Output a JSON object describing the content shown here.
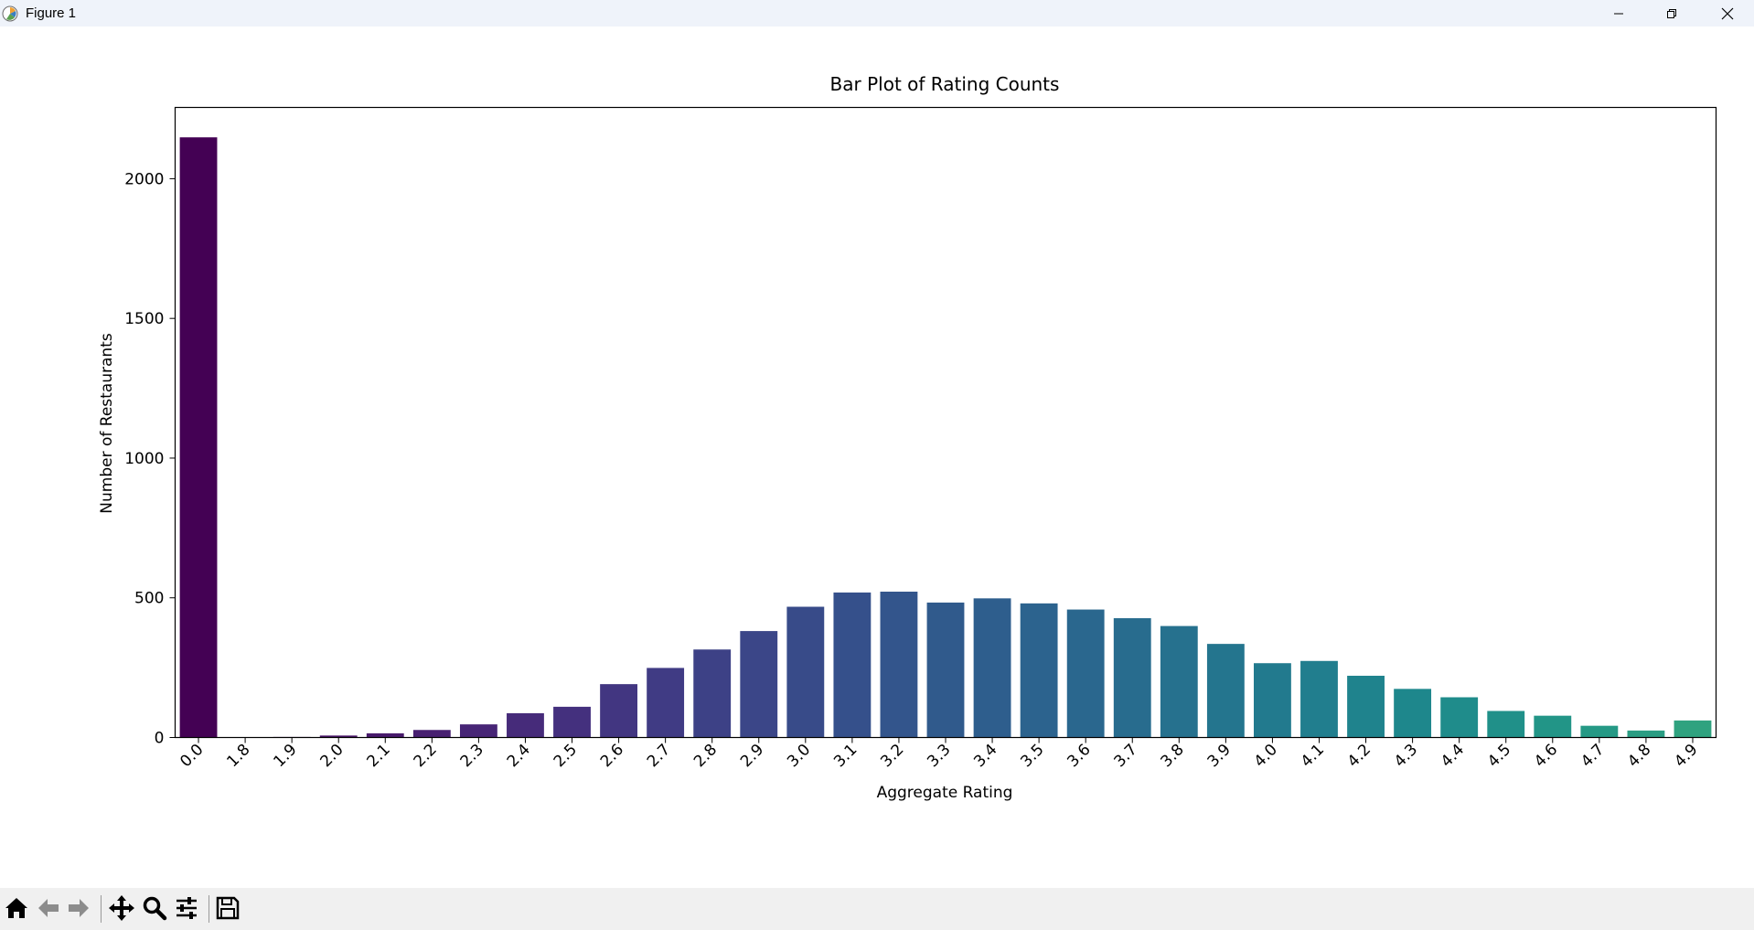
{
  "window": {
    "title": "Figure 1"
  },
  "toolbar": {
    "items": [
      "home-icon",
      "back-arrow-icon",
      "forward-arrow-icon",
      "pan-icon",
      "zoom-icon",
      "configure-subplots-icon",
      "save-icon"
    ]
  },
  "chart_data": {
    "type": "bar",
    "title": "Bar Plot of Rating Counts",
    "xlabel": "Aggregate Rating",
    "ylabel": "Number of Restaurants",
    "categories": [
      "0.0",
      "1.8",
      "1.9",
      "2.0",
      "2.1",
      "2.2",
      "2.3",
      "2.4",
      "2.5",
      "2.6",
      "2.7",
      "2.8",
      "2.9",
      "3.0",
      "3.1",
      "3.2",
      "3.3",
      "3.4",
      "3.5",
      "3.6",
      "3.7",
      "3.8",
      "3.9",
      "4.0",
      "4.1",
      "4.2",
      "4.3",
      "4.4",
      "4.5",
      "4.6",
      "4.7",
      "4.8",
      "4.9"
    ],
    "values": [
      2148,
      1,
      2,
      7,
      15,
      27,
      47,
      87,
      110,
      191,
      249,
      315,
      381,
      468,
      519,
      522,
      483,
      498,
      480,
      458,
      427,
      399,
      335,
      266,
      274,
      221,
      174,
      144,
      95,
      78,
      42,
      25,
      61
    ],
    "ylim": [
      0,
      2255
    ],
    "yticks": [
      0,
      500,
      1000,
      1500,
      2000
    ],
    "colormap": "viridis",
    "colors": [
      "#440154",
      "#46075a",
      "#470e61",
      "#481467",
      "#481a6c",
      "#482071",
      "#472576",
      "#462b7a",
      "#44307e",
      "#423681",
      "#403b84",
      "#3d4186",
      "#3b4688",
      "#384b89",
      "#35508b",
      "#33558c",
      "#305a8c",
      "#2e5e8d",
      "#2c638e",
      "#2a678e",
      "#286c8e",
      "#26718e",
      "#24758e",
      "#227a8e",
      "#217e8e",
      "#1f838d",
      "#1e878c",
      "#1f8c8b",
      "#209089",
      "#229587",
      "#259985",
      "#2a9d83",
      "#2fa27f"
    ],
    "grid": false,
    "legend": "none"
  }
}
